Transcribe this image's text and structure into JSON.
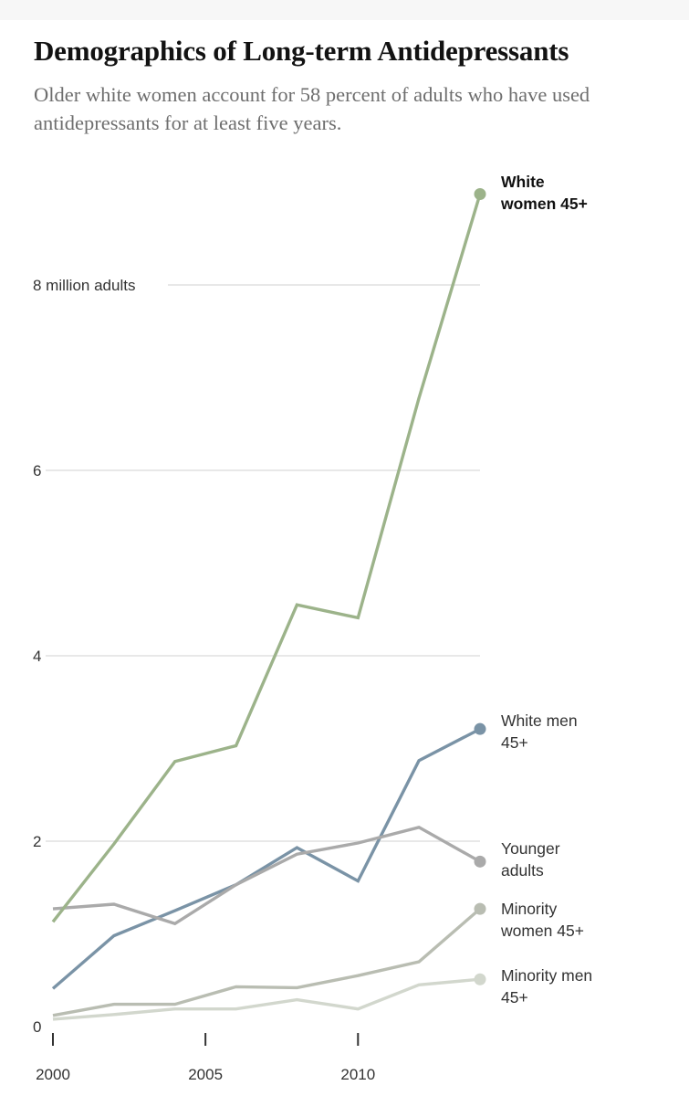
{
  "header": {
    "title": "Demographics of Long-term Antidepressants",
    "subtitle": "Older white women account for 58 percent of adults who have used antidepressants for at least five years."
  },
  "chart_data": {
    "type": "line",
    "x": [
      2000,
      2002,
      2004,
      2006,
      2008,
      2010,
      2012,
      2014
    ],
    "ylim": [
      0,
      9
    ],
    "yticks": [
      {
        "value": 0,
        "label": "0"
      },
      {
        "value": 2,
        "label": "2"
      },
      {
        "value": 4,
        "label": "4"
      },
      {
        "value": 6,
        "label": "6"
      },
      {
        "value": 8,
        "label": "8 million adults"
      }
    ],
    "xticks": [
      {
        "value": 2000,
        "label": "2000"
      },
      {
        "value": 2005,
        "label": "2005"
      },
      {
        "value": 2010,
        "label": "2010"
      }
    ],
    "grid": true,
    "series": [
      {
        "name": "White women 45+",
        "label_lines": [
          "White",
          "women 45+"
        ],
        "color": "#9cb38a",
        "highlight": true,
        "values": [
          1.13,
          1.97,
          2.86,
          3.03,
          4.55,
          4.41,
          6.78,
          8.98
        ]
      },
      {
        "name": "White men 45+",
        "label_lines": [
          "White men",
          "45+"
        ],
        "color": "#7a93a6",
        "highlight": false,
        "values": [
          0.41,
          0.98,
          1.25,
          1.53,
          1.93,
          1.57,
          2.87,
          3.21
        ]
      },
      {
        "name": "Younger adults",
        "label_lines": [
          "Younger",
          "adults"
        ],
        "color": "#aaaaaa",
        "highlight": false,
        "values": [
          1.27,
          1.32,
          1.11,
          1.53,
          1.86,
          1.98,
          2.15,
          1.78
        ]
      },
      {
        "name": "Minority women 45+",
        "label_lines": [
          "Minority",
          "women 45+"
        ],
        "color": "#b9bdb2",
        "highlight": false,
        "values": [
          0.12,
          0.24,
          0.24,
          0.43,
          0.42,
          0.55,
          0.7,
          1.27
        ]
      },
      {
        "name": "Minority men 45+",
        "label_lines": [
          "Minority men",
          "45+"
        ],
        "color": "#d2d7cd",
        "highlight": false,
        "values": [
          0.08,
          0.13,
          0.19,
          0.19,
          0.29,
          0.19,
          0.45,
          0.51
        ]
      }
    ]
  }
}
